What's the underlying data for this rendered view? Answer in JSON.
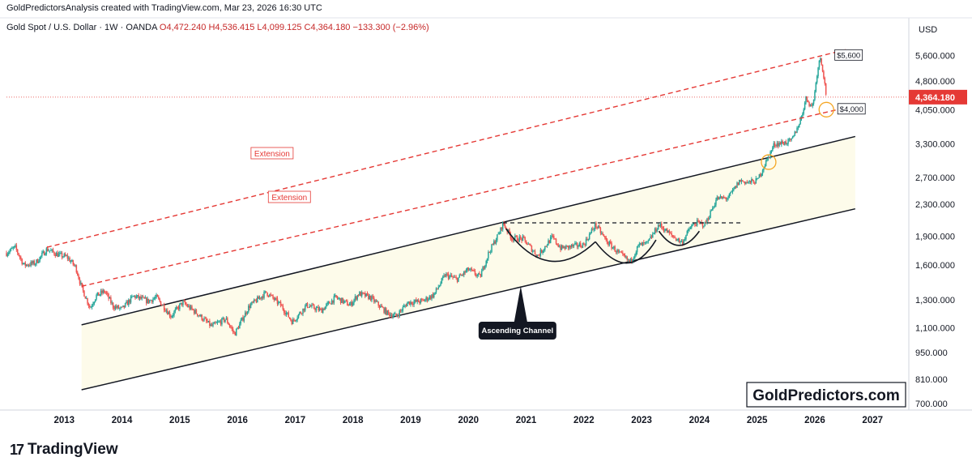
{
  "header": {
    "caption": "GoldPredictorsAnalysis created with TradingView.com, Mar 23, 2026 16:30 UTC"
  },
  "legend": {
    "symbol": "Gold Spot / U.S. Dollar · 1W · OANDA",
    "open": "O4,472.240",
    "high": "H4,536.415",
    "low": "L4,099.125",
    "close": "C4,364.180",
    "change": "−133.300 (−2.96%)"
  },
  "footer": {
    "brand": "TradingView"
  },
  "colors": {
    "up": "#26a69a",
    "down": "#ef5350",
    "price_line": "#e53935",
    "extension": "#e53935",
    "channel": "#131722",
    "channel_fill": "#fdfbea",
    "circle": "#f5a623"
  },
  "chart_data": {
    "type": "candlestick",
    "timeframe": "1W",
    "currency_label": "USD",
    "y_scale": "log",
    "ylim": [
      680,
      6300
    ],
    "xlim": [
      2012.0,
      2027.6
    ],
    "x_ticks": [
      "2013",
      "2014",
      "2015",
      "2016",
      "2017",
      "2018",
      "2019",
      "2020",
      "2021",
      "2022",
      "2023",
      "2024",
      "2025",
      "2026",
      "2027"
    ],
    "y_ticks": [
      "5,600.000",
      "4,800.000",
      "4,050.000",
      "3,300.000",
      "2,700.000",
      "2,300.000",
      "1,900.000",
      "1,600.000",
      "1,300.000",
      "1,100.000",
      "950.000",
      "810.000",
      "700.000"
    ],
    "y_tick_values": [
      5600,
      4800,
      4050,
      3300,
      2700,
      2300,
      1900,
      1600,
      1300,
      1100,
      950,
      810,
      700
    ],
    "last_price": {
      "value": 4364.18,
      "label": "4,364.180"
    },
    "price_path": [
      [
        2012.0,
        1720
      ],
      [
        2012.15,
        1780
      ],
      [
        2012.3,
        1600
      ],
      [
        2012.5,
        1620
      ],
      [
        2012.7,
        1760
      ],
      [
        2012.9,
        1700
      ],
      [
        2013.05,
        1680
      ],
      [
        2013.2,
        1580
      ],
      [
        2013.3,
        1400
      ],
      [
        2013.45,
        1240
      ],
      [
        2013.55,
        1330
      ],
      [
        2013.7,
        1370
      ],
      [
        2013.85,
        1250
      ],
      [
        2014.0,
        1230
      ],
      [
        2014.2,
        1330
      ],
      [
        2014.45,
        1290
      ],
      [
        2014.6,
        1320
      ],
      [
        2014.85,
        1180
      ],
      [
        2015.05,
        1280
      ],
      [
        2015.3,
        1200
      ],
      [
        2015.55,
        1110
      ],
      [
        2015.8,
        1160
      ],
      [
        2015.95,
        1060
      ],
      [
        2016.2,
        1250
      ],
      [
        2016.5,
        1360
      ],
      [
        2016.75,
        1260
      ],
      [
        2016.95,
        1140
      ],
      [
        2017.2,
        1260
      ],
      [
        2017.45,
        1220
      ],
      [
        2017.7,
        1320
      ],
      [
        2017.95,
        1260
      ],
      [
        2018.1,
        1350
      ],
      [
        2018.3,
        1320
      ],
      [
        2018.6,
        1200
      ],
      [
        2018.75,
        1180
      ],
      [
        2018.95,
        1280
      ],
      [
        2019.2,
        1290
      ],
      [
        2019.4,
        1340
      ],
      [
        2019.6,
        1510
      ],
      [
        2019.8,
        1470
      ],
      [
        2020.0,
        1560
      ],
      [
        2020.2,
        1490
      ],
      [
        2020.35,
        1720
      ],
      [
        2020.55,
        1960
      ],
      [
        2020.6,
        2060
      ],
      [
        2020.75,
        1880
      ],
      [
        2020.95,
        1870
      ],
      [
        2021.2,
        1690
      ],
      [
        2021.45,
        1890
      ],
      [
        2021.6,
        1770
      ],
      [
        2021.8,
        1790
      ],
      [
        2022.0,
        1810
      ],
      [
        2022.2,
        2040
      ],
      [
        2022.4,
        1840
      ],
      [
        2022.6,
        1720
      ],
      [
        2022.8,
        1630
      ],
      [
        2022.95,
        1800
      ],
      [
        2023.1,
        1820
      ],
      [
        2023.3,
        2040
      ],
      [
        2023.5,
        1920
      ],
      [
        2023.7,
        1830
      ],
      [
        2023.85,
        2010
      ],
      [
        2023.95,
        2060
      ],
      [
        2024.1,
        2040
      ],
      [
        2024.3,
        2380
      ],
      [
        2024.5,
        2390
      ],
      [
        2024.7,
        2650
      ],
      [
        2024.85,
        2620
      ],
      [
        2025.0,
        2650
      ],
      [
        2025.15,
        2950
      ],
      [
        2025.3,
        3300
      ],
      [
        2025.45,
        3320
      ],
      [
        2025.6,
        3360
      ],
      [
        2025.75,
        3800
      ],
      [
        2025.85,
        4350
      ],
      [
        2025.95,
        4100
      ],
      [
        2026.0,
        4500
      ],
      [
        2026.05,
        5200
      ],
      [
        2026.1,
        5550
      ],
      [
        2026.15,
        5000
      ],
      [
        2026.2,
        4364.18
      ]
    ],
    "channel": {
      "upper": [
        [
          2013.3,
          1120
        ],
        [
          2026.7,
          3450
        ]
      ],
      "lower": [
        [
          2013.3,
          760
        ],
        [
          2026.7,
          2240
        ]
      ],
      "label": "Ascending Channel"
    },
    "extensions": [
      {
        "label": "Extension",
        "from": [
          2012.7,
          1780
        ],
        "to": [
          2026.55,
          5800
        ]
      },
      {
        "label": "Extension",
        "from": [
          2013.3,
          1410
        ],
        "to": [
          2026.45,
          4070
        ]
      }
    ],
    "resistance_line": {
      "from": [
        2020.6,
        2060
      ],
      "to": [
        2024.75,
        2060
      ]
    },
    "cup_arcs": [
      {
        "from": [
          2020.65,
          1990
        ],
        "to": [
          2022.2,
          1840
        ],
        "bottom": [
          2021.4,
          1640
        ]
      },
      {
        "from": [
          2022.2,
          1840
        ],
        "to": [
          2023.25,
          1860
        ],
        "bottom": [
          2022.75,
          1620
        ]
      },
      {
        "from": [
          2023.3,
          1960
        ],
        "to": [
          2024.0,
          1960
        ],
        "bottom": [
          2023.65,
          1800
        ]
      }
    ],
    "annotations": [
      {
        "label": "$5,600",
        "x": 2026.15,
        "y": 5600
      },
      {
        "label": "$4,000",
        "x": 2026.2,
        "y": 4060
      }
    ],
    "circles": [
      [
        2025.2,
        2960
      ],
      [
        2026.2,
        4050
      ]
    ],
    "watermark": "GoldPredictors.com"
  }
}
